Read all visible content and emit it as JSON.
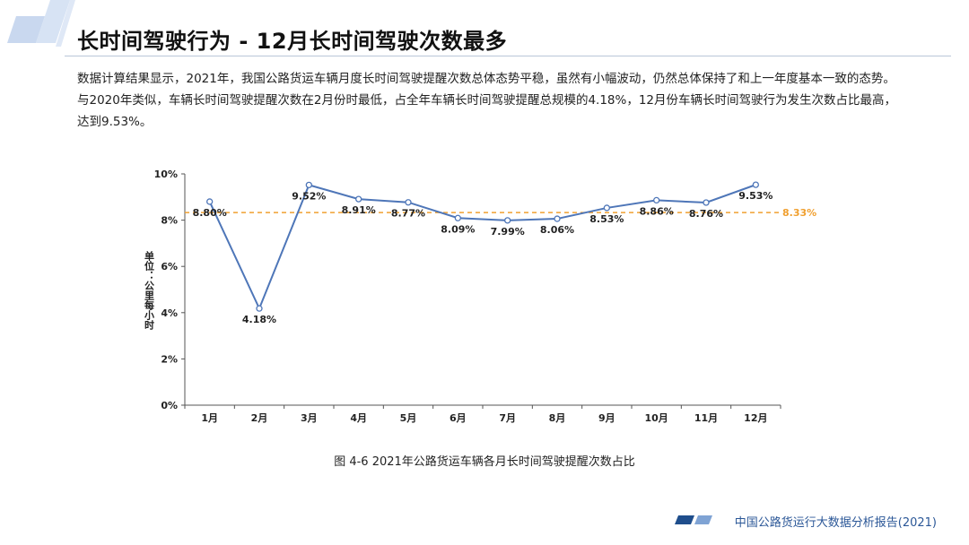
{
  "header": {
    "title": "长时间驾驶行为 - 12月长时间驾驶次数最多"
  },
  "body": {
    "paragraph": "数据计算结果显示，2021年，我国公路货运车辆月度长时间驾驶提醒次数总体态势平稳，虽然有小幅波动，仍然总体保持了和上一年度基本一致的态势。与2020年类似，车辆长时间驾驶提醒次数在2月份时最低，占全年车辆长时间驾驶提醒总规模的4.18%，12月份车辆长时间驾驶行为发生次数占比最高，达到9.53%。"
  },
  "chart_data": {
    "type": "line",
    "categories": [
      "1月",
      "2月",
      "3月",
      "4月",
      "5月",
      "6月",
      "7月",
      "8月",
      "9月",
      "10月",
      "11月",
      "12月"
    ],
    "values": [
      8.8,
      4.18,
      9.52,
      8.91,
      8.77,
      8.09,
      7.99,
      8.06,
      8.53,
      8.86,
      8.76,
      9.53
    ],
    "value_labels": [
      "8.80%",
      "4.18%",
      "9.52%",
      "8.91%",
      "8.77%",
      "8.09%",
      "7.99%",
      "8.06%",
      "8.53%",
      "8.86%",
      "8.76%",
      "9.53%"
    ],
    "reference_line": {
      "value": 8.33,
      "label": "8.33%",
      "color": "#f0a030"
    },
    "ylim": [
      0,
      10
    ],
    "yticks": [
      "0%",
      "2%",
      "4%",
      "6%",
      "8%",
      "10%"
    ],
    "ylabel": "单位：公里每小时",
    "line_color": "#4e76b8",
    "grid": false,
    "caption": "图 4-6 2021年公路货运车辆各月长时间驾驶提醒次数占比"
  },
  "footer": {
    "source": "中国公路货运行大数据分析报告(2021)"
  },
  "colors": {
    "accent": "#2b5797",
    "decoration": "#c9d8ef"
  }
}
